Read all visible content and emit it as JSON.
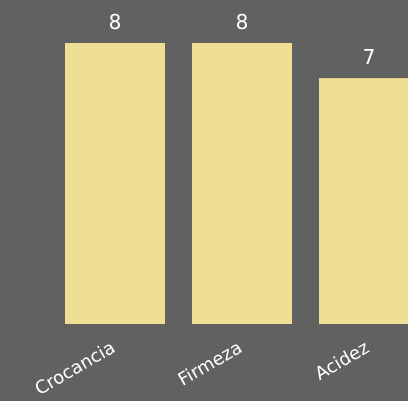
{
  "chart_data": {
    "type": "bar",
    "categories": [
      "Crocancia",
      "Firmeza",
      "Acidez"
    ],
    "values": [
      8,
      8,
      7
    ],
    "data_labels": [
      "8",
      "8",
      "7"
    ],
    "title": "",
    "xlabel": "",
    "ylabel": "",
    "ylim": [
      0,
      8
    ],
    "grid": false,
    "legend": "none",
    "colors": {
      "background": "#616161",
      "bar": "#efdf95",
      "label_text": "#ffffff"
    }
  }
}
